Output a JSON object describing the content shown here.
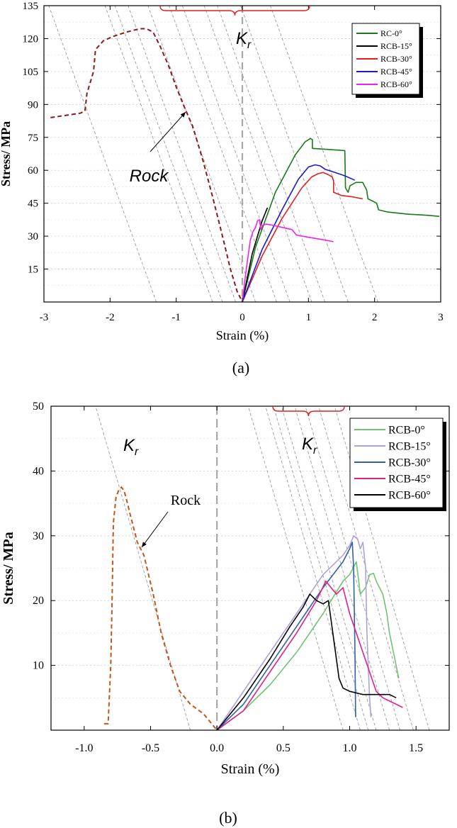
{
  "chart_data": [
    {
      "type": "line",
      "panel_label": "(a)",
      "title": "",
      "xlabel": "Strain (%)",
      "ylabel": "Stress/ MPa",
      "xlim": [
        -3,
        3
      ],
      "ylim": [
        0,
        135
      ],
      "xticks": [
        -3,
        -2,
        -1,
        0,
        1,
        2,
        3
      ],
      "xtick_labels": [
        "-3",
        "-2",
        "-1",
        "0",
        "1",
        "2",
        "3"
      ],
      "yticks": [
        15,
        30,
        45,
        60,
        75,
        90,
        105,
        120,
        135
      ],
      "ytick_labels": [
        "15",
        "30",
        "45",
        "60",
        "75",
        "90",
        "105",
        "120",
        "135"
      ],
      "grid": true,
      "legend_position": "top-right",
      "annotations": {
        "kr_label": "K",
        "kr_sub": "r",
        "rock_label": "Rock"
      },
      "kr_lines": {
        "slope": -83,
        "intercepts": [
          -1.3,
          -0.45,
          -0.3,
          -0.1,
          0.2,
          0.52,
          0.72,
          1.05,
          1.25,
          1.6,
          2.05
        ]
      },
      "rock": {
        "name": "Rock",
        "color": "#8b1a1a",
        "x": [
          -2.9,
          -2.45,
          -2.38,
          -2.35,
          -2.25,
          -2.22,
          -2.1,
          -1.95,
          -1.75,
          -1.55,
          -1.45,
          -1.35,
          -1.25,
          -1.12,
          -1.0,
          -0.88,
          -0.75,
          -0.6,
          -0.45,
          -0.3,
          -0.18,
          -0.08,
          0.0
        ],
        "y": [
          84,
          86,
          87,
          95,
          105,
          115,
          119,
          121,
          123,
          124.5,
          124.5,
          123,
          117,
          108,
          98,
          89,
          80,
          65,
          48,
          30,
          15,
          5,
          0
        ]
      },
      "series": [
        {
          "name": "RC-0°",
          "color": "#1a7a1a",
          "x": [
            0,
            0.2,
            0.5,
            0.8,
            0.95,
            1.03,
            1.06,
            1.06,
            1.3,
            1.55,
            1.56,
            1.6,
            1.63,
            1.72,
            1.82,
            1.88,
            1.9,
            1.97,
            2.03,
            2.06,
            2.2,
            2.5,
            2.8,
            2.98
          ],
          "y": [
            0,
            25,
            50,
            67,
            73,
            74.5,
            74,
            70,
            69.5,
            69,
            52,
            50,
            53,
            54.5,
            54.5,
            51,
            47,
            46,
            45,
            42,
            41,
            40,
            39.5,
            39
          ]
        },
        {
          "name": "RCB-15°",
          "color": "#000000",
          "x": [
            0,
            0.15,
            0.3,
            0.38
          ],
          "y": [
            0,
            22,
            37,
            43
          ]
        },
        {
          "name": "RCB-30°",
          "color": "#e02020",
          "x": [
            0,
            0.3,
            0.6,
            0.9,
            1.05,
            1.15,
            1.22,
            1.3,
            1.36,
            1.38,
            1.38,
            1.5,
            1.65,
            1.82
          ],
          "y": [
            0,
            21,
            38,
            52,
            57,
            58.5,
            59,
            58,
            57,
            55,
            50,
            48.5,
            48,
            47
          ]
        },
        {
          "name": "RCB-45°",
          "color": "#1a1ad0",
          "x": [
            0,
            0.3,
            0.6,
            0.85,
            1.0,
            1.1,
            1.18,
            1.25,
            1.4,
            1.55,
            1.7
          ],
          "y": [
            0,
            24,
            42,
            56,
            61.5,
            62.5,
            62,
            60.5,
            59,
            57.5,
            55.5
          ]
        },
        {
          "name": "RCB-60°",
          "color": "#ee22ee",
          "x": [
            0,
            0.06,
            0.12,
            0.16,
            0.2,
            0.23,
            0.26,
            0.28,
            0.31,
            0.36,
            0.45,
            0.6,
            0.75,
            0.82,
            1.0,
            1.2,
            1.38
          ],
          "y": [
            0,
            15,
            28,
            32,
            34,
            37,
            37.5,
            33,
            35,
            35.5,
            35,
            34,
            33,
            30.5,
            29.5,
            28.5,
            27.5
          ]
        }
      ]
    },
    {
      "type": "line",
      "panel_label": "(b)",
      "title": "",
      "xlabel": "Strain (%)",
      "ylabel": "Stress/ MPa",
      "xlim": [
        -1.25,
        1.75
      ],
      "ylim": [
        0,
        50
      ],
      "xticks": [
        -1.0,
        -0.5,
        0.0,
        0.5,
        1.0,
        1.5
      ],
      "xtick_labels": [
        "-1.0",
        "-0.5",
        "0.0",
        "0.5",
        "1.0",
        "1.5"
      ],
      "yticks": [
        10,
        20,
        30,
        40,
        50
      ],
      "ytick_labels": [
        "10",
        "20",
        "30",
        "40",
        "50"
      ],
      "grid": true,
      "legend_position": "top-right",
      "annotations": {
        "kr_label": "K",
        "kr_sub": "r",
        "rock_label": "Rock"
      },
      "kr_lines": {
        "slope": -70,
        "intercepts": [
          -0.2,
          0.95,
          1.08,
          1.14,
          1.2,
          1.3,
          1.38,
          1.48,
          1.6
        ]
      },
      "rock": {
        "name": "Rock",
        "color": "#c0561a",
        "x": [
          -0.85,
          -0.82,
          -0.8,
          -0.79,
          -0.78,
          -0.76,
          -0.74,
          -0.72,
          -0.7,
          -0.68,
          -0.65,
          -0.6,
          -0.55,
          -0.48,
          -0.42,
          -0.35,
          -0.28,
          -0.2,
          -0.1,
          -0.02,
          0.0
        ],
        "y": [
          1,
          1,
          10,
          20,
          32,
          36,
          37,
          37.5,
          37,
          35.5,
          33,
          29,
          27,
          21,
          15,
          10,
          6,
          4,
          2.5,
          0.5,
          0
        ]
      },
      "series": [
        {
          "name": "RCB-0°",
          "color": "#70c470",
          "x": [
            0,
            0.2,
            0.4,
            0.6,
            0.8,
            0.95,
            1.0,
            1.05,
            1.08,
            1.12,
            1.15,
            1.18,
            1.2,
            1.25,
            1.28,
            1.3,
            1.34,
            1.37
          ],
          "y": [
            0,
            3,
            7,
            12,
            18,
            23,
            24,
            26,
            21,
            22,
            24,
            24.2,
            23,
            21,
            18,
            15,
            11,
            8
          ]
        },
        {
          "name": "RCB-15°",
          "color": "#b0a0d8",
          "x": [
            0,
            0.2,
            0.4,
            0.6,
            0.8,
            0.95,
            1.0,
            1.03,
            1.06,
            1.08,
            1.1,
            1.12,
            1.13,
            1.15,
            1.16
          ],
          "y": [
            0,
            6,
            12,
            18,
            24,
            27,
            28.5,
            30,
            29.5,
            28,
            29,
            25,
            15,
            5,
            2
          ]
        },
        {
          "name": "RCB-30°",
          "color": "#3060a8",
          "x": [
            0,
            0.2,
            0.4,
            0.6,
            0.8,
            0.95,
            1.0,
            1.02,
            1.03,
            1.04,
            1.045
          ],
          "y": [
            0,
            4,
            10,
            16,
            22,
            26,
            28,
            29,
            25,
            12,
            2
          ]
        },
        {
          "name": "RCB-45°",
          "color": "#e0208a",
          "x": [
            0,
            0.2,
            0.4,
            0.6,
            0.75,
            0.82,
            0.9,
            0.95,
            1.0,
            1.05,
            1.1,
            1.15,
            1.2,
            1.25,
            1.3,
            1.35,
            1.4
          ],
          "y": [
            0,
            3,
            9,
            15,
            20,
            23,
            21,
            22,
            18,
            15,
            12,
            9,
            6,
            5,
            4.5,
            4,
            3.5
          ]
        },
        {
          "name": "RCB-60°",
          "color": "#000000",
          "x": [
            0,
            0.2,
            0.4,
            0.55,
            0.65,
            0.7,
            0.75,
            0.8,
            0.84,
            0.88,
            0.92,
            0.95,
            1.0,
            1.1,
            1.2,
            1.3,
            1.35
          ],
          "y": [
            0,
            5,
            11,
            16,
            19,
            21,
            20,
            19.5,
            20,
            14,
            8,
            6.5,
            6,
            5.5,
            5.5,
            5.5,
            5
          ]
        }
      ]
    }
  ]
}
